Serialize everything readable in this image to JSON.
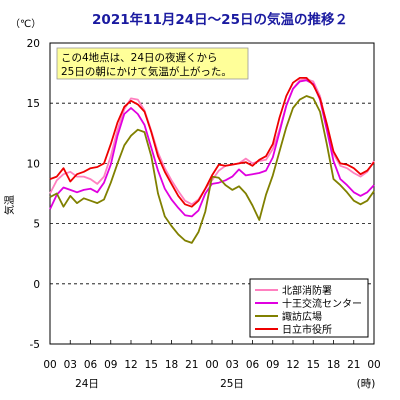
{
  "chart_data": {
    "type": "line",
    "title": "2021年11月24日～25日の気温の推移２",
    "unit": "（℃）",
    "ylabel": "気温",
    "xunit": "(時)",
    "annotation": [
      "この4地点は、24日の夜遅くから",
      "25日の朝にかけて気温が上がった。"
    ],
    "ylim": [
      -5,
      20
    ],
    "yticks": [
      -5,
      0,
      5,
      10,
      15,
      20
    ],
    "x_tick_labels": [
      "00",
      "03",
      "06",
      "09",
      "12",
      "15",
      "18",
      "21",
      "00",
      "03",
      "06",
      "09",
      "12",
      "15",
      "18",
      "21",
      "00"
    ],
    "day_labels": [
      "24日",
      "25日"
    ],
    "x": [
      0,
      1,
      2,
      3,
      4,
      5,
      6,
      7,
      8,
      9,
      10,
      11,
      12,
      13,
      14,
      15,
      16,
      17,
      18,
      19,
      20,
      21,
      22,
      23,
      24,
      25,
      26,
      27,
      28,
      29,
      30,
      31,
      32,
      33,
      34,
      35,
      36,
      37,
      38,
      39,
      40,
      41,
      42,
      43,
      44,
      45,
      46,
      47,
      48
    ],
    "xlim": [
      0,
      48
    ],
    "grid": "dashed horizontal at 0, 5, 10, 15",
    "legend_position": "bottom-right",
    "series": [
      {
        "name": "北部消防署",
        "color": "#ff80c0",
        "values": [
          7.5,
          8.6,
          9.1,
          9.3,
          8.9,
          8.9,
          8.7,
          8.3,
          8.9,
          10.6,
          12.8,
          14.5,
          15.4,
          15.3,
          14.4,
          12.7,
          10.9,
          9.6,
          8.6,
          7.7,
          6.9,
          6.6,
          7.0,
          7.9,
          8.6,
          9.4,
          9.8,
          9.9,
          10.0,
          10.4,
          10.0,
          10.2,
          10.3,
          11.2,
          12.8,
          14.8,
          16.2,
          16.9,
          17.0,
          16.8,
          15.6,
          13.2,
          10.8,
          9.8,
          9.6,
          9.2,
          8.9,
          9.3,
          10.2
        ]
      },
      {
        "name": "十王交流センター",
        "color": "#e000e0",
        "values": [
          6.2,
          7.4,
          8.0,
          7.8,
          7.6,
          7.8,
          7.9,
          7.6,
          8.4,
          9.9,
          12.3,
          14.1,
          14.6,
          14.1,
          13.2,
          11.3,
          9.4,
          7.9,
          7.0,
          6.3,
          5.7,
          5.6,
          6.1,
          7.5,
          8.3,
          8.4,
          8.6,
          8.9,
          9.5,
          9.0,
          9.1,
          9.2,
          9.4,
          10.5,
          12.6,
          14.8,
          16.2,
          16.8,
          16.9,
          16.6,
          15.3,
          12.8,
          10.2,
          8.7,
          8.2,
          7.6,
          7.3,
          7.6,
          8.2
        ]
      },
      {
        "name": "諏訪広場",
        "color": "#808000",
        "values": [
          7.2,
          7.5,
          6.4,
          7.3,
          6.7,
          7.1,
          6.9,
          6.7,
          7.0,
          8.4,
          10.0,
          11.5,
          12.3,
          12.8,
          12.6,
          10.6,
          7.5,
          5.6,
          4.8,
          4.1,
          3.6,
          3.4,
          4.3,
          6.0,
          8.9,
          8.8,
          8.2,
          7.8,
          8.1,
          7.5,
          6.5,
          5.3,
          7.4,
          9.0,
          11.0,
          13.0,
          14.6,
          15.3,
          15.6,
          15.4,
          14.3,
          11.6,
          8.7,
          8.2,
          7.6,
          6.9,
          6.6,
          6.9,
          7.7
        ]
      },
      {
        "name": "日立市役所",
        "color": "#ee0000",
        "values": [
          8.7,
          8.9,
          9.6,
          8.5,
          9.1,
          9.3,
          9.6,
          9.7,
          10.0,
          11.6,
          13.4,
          14.7,
          15.2,
          14.9,
          14.3,
          12.6,
          10.6,
          9.3,
          8.3,
          7.3,
          6.6,
          6.4,
          6.9,
          7.9,
          9.0,
          9.9,
          9.8,
          9.9,
          10.0,
          10.1,
          9.8,
          10.3,
          10.6,
          11.6,
          13.8,
          15.6,
          16.7,
          17.1,
          17.1,
          16.5,
          15.4,
          13.3,
          11.0,
          10.0,
          9.9,
          9.6,
          9.1,
          9.4,
          10.1
        ]
      }
    ]
  }
}
